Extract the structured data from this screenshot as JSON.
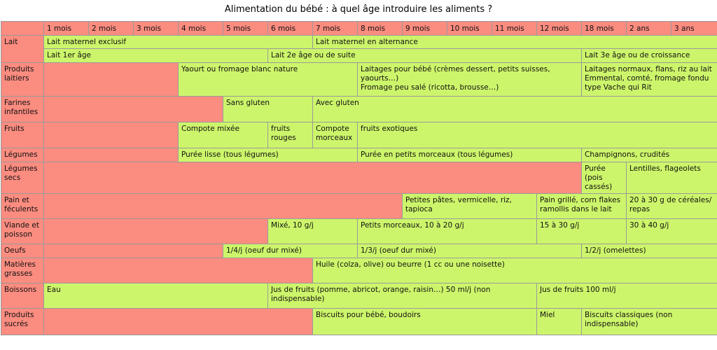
{
  "title": "Alimentation du bébé : à quel âge introduire les aliments ?",
  "colors": {
    "header": "#fb8c80",
    "not_yet": "#fb8c80",
    "allowed": "#cdf56b",
    "grid": "#9a9a9a"
  },
  "chart_data": {
    "type": "table",
    "columns": [
      "1 mois",
      "2 mois",
      "3 mois",
      "4 mois",
      "5 mois",
      "6 mois",
      "7 mois",
      "8 mois",
      "9 mois",
      "10 mois",
      "11 mois",
      "12 mois",
      "18 mois",
      "2 ans",
      "3 ans"
    ],
    "rows": [
      {
        "label": "Lait",
        "lines": [
          [
            {
              "text": "Lait maternel exclusif",
              "span": 6,
              "status": "allowed"
            },
            {
              "text": "Lait maternel en alternance",
              "span": 9,
              "status": "allowed"
            }
          ],
          [
            {
              "text": "Lait 1er âge",
              "span": 5,
              "status": "allowed"
            },
            {
              "text": "Lait 2e âge ou de suite",
              "span": 7,
              "status": "allowed"
            },
            {
              "text": "Lait 3e âge ou de croissance",
              "span": 3,
              "status": "allowed"
            }
          ]
        ]
      },
      {
        "label": "Produits laitiers",
        "lines": [
          [
            {
              "text": "",
              "span": 3,
              "status": "not_yet"
            },
            {
              "text": "Yaourt ou fromage blanc nature",
              "span": 4,
              "status": "allowed"
            },
            {
              "text": "Laitages pour bébé (crèmes dessert, petits suisses, yaourts…)\nFromage peu salé (ricotta, brousse…)",
              "span": 5,
              "status": "allowed"
            },
            {
              "text": "Laitages normaux, flans, riz au lait\nEmmental, comté, fromage fondu type Vache qui Rit",
              "span": 3,
              "status": "allowed"
            }
          ]
        ]
      },
      {
        "label": "Farines infantiles",
        "lines": [
          [
            {
              "text": "",
              "span": 4,
              "status": "not_yet"
            },
            {
              "text": "Sans gluten",
              "span": 2,
              "status": "allowed"
            },
            {
              "text": "Avec gluten",
              "span": 9,
              "status": "allowed"
            }
          ]
        ]
      },
      {
        "label": "Fruits",
        "lines": [
          [
            {
              "text": "",
              "span": 3,
              "status": "not_yet"
            },
            {
              "text": "Compote mixée",
              "span": 2,
              "status": "allowed"
            },
            {
              "text": "fruits rouges",
              "span": 1,
              "status": "allowed"
            },
            {
              "text": "Compote morceaux",
              "span": 1,
              "status": "allowed"
            },
            {
              "text": "fruits exotiques",
              "span": 8,
              "status": "allowed"
            }
          ]
        ]
      },
      {
        "label": "Légumes",
        "lines": [
          [
            {
              "text": "",
              "span": 3,
              "status": "not_yet"
            },
            {
              "text": "Purée lisse (tous légumes)",
              "span": 4,
              "status": "allowed"
            },
            {
              "text": "Purée en petits morceaux (tous légumes)",
              "span": 5,
              "status": "allowed"
            },
            {
              "text": "Champignons, crudités",
              "span": 3,
              "status": "allowed"
            }
          ]
        ]
      },
      {
        "label": "Légumes secs",
        "lines": [
          [
            {
              "text": "",
              "span": 12,
              "status": "not_yet"
            },
            {
              "text": "Purée (pois cassés)",
              "span": 1,
              "status": "allowed"
            },
            {
              "text": "Lentilles, flageolets",
              "span": 2,
              "status": "allowed"
            }
          ]
        ]
      },
      {
        "label": "Pain et féculents",
        "lines": [
          [
            {
              "text": "",
              "span": 8,
              "status": "not_yet"
            },
            {
              "text": "Petites pâtes, vermicelle, riz, tapioca",
              "span": 3,
              "status": "allowed"
            },
            {
              "text": "Pain grillé, corn flakes ramollis dans le lait",
              "span": 2,
              "status": "allowed"
            },
            {
              "text": "20 à 30 g de céréales/ repas",
              "span": 2,
              "status": "allowed"
            }
          ]
        ]
      },
      {
        "label": "Viande et poisson",
        "lines": [
          [
            {
              "text": "",
              "span": 5,
              "status": "not_yet"
            },
            {
              "text": "Mixé, 10 g/j",
              "span": 2,
              "status": "allowed"
            },
            {
              "text": "Petits morceaux, 10 à 20 g/j",
              "span": 4,
              "status": "allowed"
            },
            {
              "text": "15 à 30 g/j",
              "span": 2,
              "status": "allowed"
            },
            {
              "text": "30 à 40 g/j",
              "span": 2,
              "status": "allowed"
            }
          ]
        ]
      },
      {
        "label": "Oeufs",
        "lines": [
          [
            {
              "text": "",
              "span": 4,
              "status": "not_yet"
            },
            {
              "text": "1/4/j (oeuf dur mixé)",
              "span": 3,
              "status": "allowed"
            },
            {
              "text": "1/3/j (oeuf dur mixé)",
              "span": 5,
              "status": "allowed"
            },
            {
              "text": "1/2/j (omelettes)",
              "span": 3,
              "status": "allowed"
            }
          ]
        ]
      },
      {
        "label": "Matières grasses",
        "lines": [
          [
            {
              "text": "",
              "span": 6,
              "status": "not_yet"
            },
            {
              "text": "Huile (colza, olive) ou beurre (1 cc ou une noisette)",
              "span": 9,
              "status": "allowed"
            }
          ]
        ]
      },
      {
        "label": "Boissons",
        "lines": [
          [
            {
              "text": "Eau",
              "span": 5,
              "status": "allowed"
            },
            {
              "text": "Jus de fruits (pomme, abricot, orange, raisin…) 50 ml/j (non indispensable)",
              "span": 6,
              "status": "allowed"
            },
            {
              "text": "Jus de fruits 100 ml/j",
              "span": 4,
              "status": "allowed"
            }
          ]
        ]
      },
      {
        "label": "Produits sucrés",
        "lines": [
          [
            {
              "text": "",
              "span": 6,
              "status": "not_yet"
            },
            {
              "text": "Biscuits pour bébé, boudoirs",
              "span": 5,
              "status": "allowed"
            },
            {
              "text": "Miel",
              "span": 1,
              "status": "allowed"
            },
            {
              "text": "Biscuits classiques (non indispensable)",
              "span": 3,
              "status": "allowed"
            }
          ]
        ]
      }
    ]
  }
}
